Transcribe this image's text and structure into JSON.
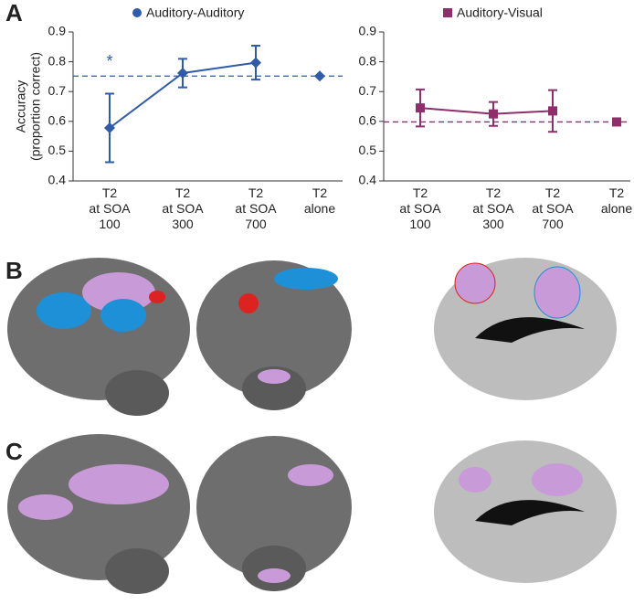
{
  "panel_labels": [
    "A",
    "B",
    "C"
  ],
  "chart_data": [
    {
      "type": "line",
      "y_label": [
        "Accuracy",
        "(proportion correct)"
      ],
      "categories": [
        "T2\nat SOA\n100",
        "T2\nat SOA\n300",
        "T2\nat SOA\n700",
        "T2\nalone"
      ],
      "series": [
        {
          "name": "Auditory-Auditory",
          "color": "#2f5ba8",
          "marker": "diamond",
          "values": [
            0.578,
            0.762,
            0.797,
            null
          ],
          "errors": [
            0.115,
            0.048,
            0.057,
            null
          ]
        }
      ],
      "alone_value": 0.752,
      "annotation": "*",
      "ylim": [
        0.4,
        0.9
      ],
      "yticks": [
        0.4,
        0.5,
        0.6,
        0.7,
        0.8,
        0.9
      ]
    },
    {
      "type": "line",
      "categories": [
        "T2\nat SOA\n100",
        "T2\nat SOA\n300",
        "T2\nat SOA\n700",
        "T2\nalone"
      ],
      "series": [
        {
          "name": "Auditory-Visual",
          "color": "#8e2f6c",
          "marker": "square",
          "values": [
            0.645,
            0.625,
            0.635,
            null
          ],
          "errors": [
            0.062,
            0.04,
            0.07,
            null
          ]
        }
      ],
      "alone_value": 0.598,
      "ylim": [
        0.4,
        0.9
      ],
      "yticks": [
        0.4,
        0.5,
        0.6,
        0.7,
        0.8,
        0.9
      ]
    }
  ]
}
